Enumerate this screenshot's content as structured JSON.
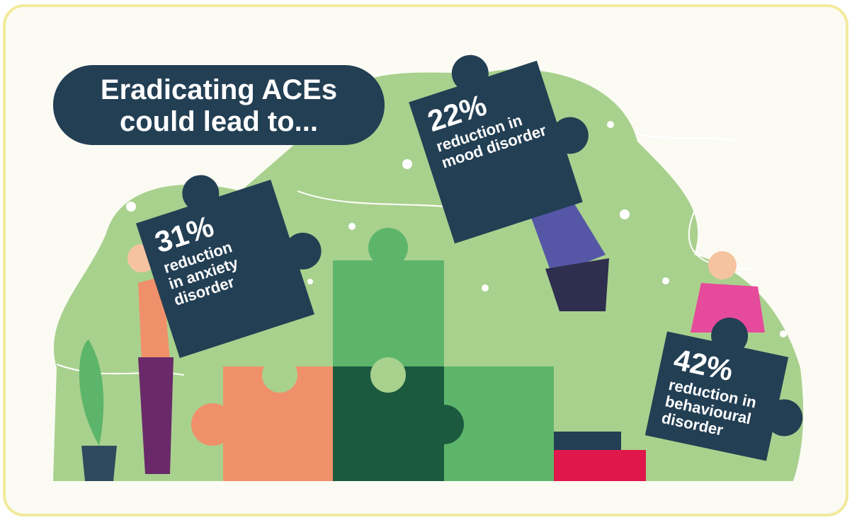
{
  "title": {
    "lines": [
      "Eradicating ACEs",
      "could lead to..."
    ]
  },
  "pieces": [
    {
      "value": "31%",
      "lines": [
        "reduction",
        "in anxiety",
        "disorder"
      ]
    },
    {
      "value": "22%",
      "lines": [
        "reduction in",
        "mood disorder"
      ]
    },
    {
      "value": "42%",
      "lines": [
        "reduction in",
        "behavioural",
        "disorder"
      ]
    }
  ]
}
